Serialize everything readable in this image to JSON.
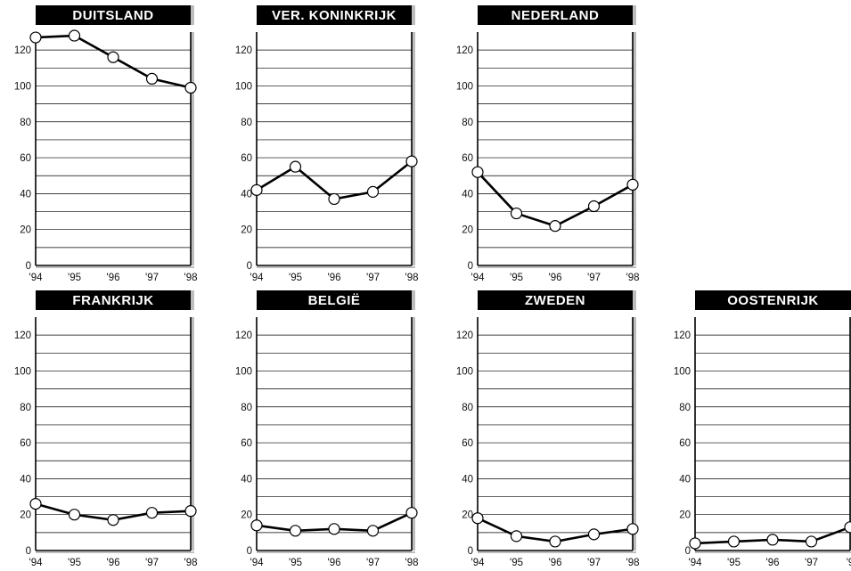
{
  "chart_data": [
    {
      "type": "line",
      "title": "DUITSLAND",
      "categories": [
        "'94",
        "'95",
        "'96",
        "'97",
        "'98"
      ],
      "values": [
        127,
        128,
        116,
        104,
        99
      ],
      "ylim": [
        0,
        130
      ],
      "yticks": [
        0,
        20,
        40,
        60,
        80,
        100,
        120
      ],
      "grid": true
    },
    {
      "type": "line",
      "title": "VER. KONINKRIJK",
      "categories": [
        "'94",
        "'95",
        "'96",
        "'97",
        "'98"
      ],
      "values": [
        42,
        55,
        37,
        41,
        58
      ],
      "ylim": [
        0,
        130
      ],
      "yticks": [
        0,
        20,
        40,
        60,
        80,
        100,
        120
      ],
      "grid": true
    },
    {
      "type": "line",
      "title": "NEDERLAND",
      "categories": [
        "'94",
        "'95",
        "'96",
        "'97",
        "'98"
      ],
      "values": [
        52,
        29,
        22,
        33,
        45
      ],
      "ylim": [
        0,
        130
      ],
      "yticks": [
        0,
        20,
        40,
        60,
        80,
        100,
        120
      ],
      "grid": true
    },
    {
      "type": "line",
      "title": "FRANKRIJK",
      "categories": [
        "'94",
        "'95",
        "'96",
        "'97",
        "'98"
      ],
      "values": [
        26,
        20,
        17,
        21,
        22
      ],
      "ylim": [
        0,
        130
      ],
      "yticks": [
        0,
        20,
        40,
        60,
        80,
        100,
        120
      ],
      "grid": true
    },
    {
      "type": "line",
      "title": "BELGIË",
      "categories": [
        "'94",
        "'95",
        "'96",
        "'97",
        "'98"
      ],
      "values": [
        14,
        11,
        12,
        11,
        21
      ],
      "ylim": [
        0,
        130
      ],
      "yticks": [
        0,
        20,
        40,
        60,
        80,
        100,
        120
      ],
      "grid": true
    },
    {
      "type": "line",
      "title": "ZWEDEN",
      "categories": [
        "'94",
        "'95",
        "'96",
        "'97",
        "'98"
      ],
      "values": [
        18,
        8,
        5,
        9,
        12
      ],
      "ylim": [
        0,
        130
      ],
      "yticks": [
        0,
        20,
        40,
        60,
        80,
        100,
        120
      ],
      "grid": true
    },
    {
      "type": "line",
      "title": "OOSTENRIJK",
      "categories": [
        "'94",
        "'95",
        "'96",
        "'97",
        "'9"
      ],
      "values": [
        4,
        5,
        6,
        5,
        13
      ],
      "ylim": [
        0,
        130
      ],
      "yticks": [
        0,
        20,
        40,
        60,
        80,
        100,
        120
      ],
      "grid": true
    }
  ]
}
